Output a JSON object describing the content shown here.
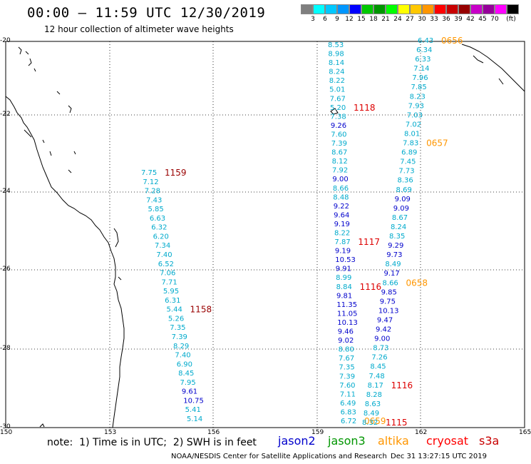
{
  "header": {
    "title": "00:00 – 11:59 UTC 12/30/2019",
    "subtitle": "12 hour collection of altimeter wave heights"
  },
  "scale": {
    "colors": [
      "#7f7f7f",
      "#00ffff",
      "#00c8ff",
      "#0096ff",
      "#0000ff",
      "#00c800",
      "#009600",
      "#00ff00",
      "#ffff00",
      "#ffc800",
      "#ff9600",
      "#ff0000",
      "#c80000",
      "#960000",
      "#c800c8",
      "#96009a",
      "#ff00ff",
      "#000000"
    ],
    "labels": [
      "3",
      "6",
      "9",
      "12",
      "15",
      "18",
      "21",
      "24",
      "27",
      "30",
      "33",
      "36",
      "39",
      "42",
      "45",
      "70",
      "(ft)"
    ]
  },
  "axes": {
    "lat_labels": [
      "-20",
      "-22",
      "-24",
      "-26",
      "-28",
      "-30"
    ],
    "lon_labels": [
      "150",
      "153",
      "156",
      "159",
      "162",
      "165"
    ]
  },
  "footer": {
    "note": "note:  1) Time is in UTC;  2) SWH is in feet",
    "satellites": [
      {
        "name": "jason2",
        "color": "#0000cc"
      },
      {
        "name": "jason3",
        "color": "#009600"
      },
      {
        "name": "altika",
        "color": "#ff9600"
      },
      {
        "name": "cryosat",
        "color": "#ff0000"
      },
      {
        "name": "s3a",
        "color": "#c80000"
      }
    ],
    "credit": "NOAA/NESDIS Center for Satellite Applications and Research",
    "timestamp": "Dec 31 13:27:15 UTC 2019"
  },
  "tracks": [
    {
      "id": "track-a",
      "color": "#00aacc",
      "values": [
        "7.75",
        "7.12",
        "7.28",
        "7.43",
        "5.85",
        "6.63",
        "6.32",
        "6.20",
        "7.34",
        "7.40",
        "6.52",
        "7.06",
        "7.71",
        "5.95",
        "6.31",
        "5.44",
        "5.26",
        "7.35",
        "7.39",
        "8.29",
        "7.40",
        "6.90",
        "8.45",
        "7.95",
        "9.61",
        "10.75",
        "5.41",
        "5.14"
      ],
      "time_labels": [
        {
          "text": "1159",
          "color": "#990000",
          "index": 0
        },
        {
          "text": "1158",
          "color": "#990000",
          "index": 15
        }
      ]
    },
    {
      "id": "track-b",
      "color": "#00aacc",
      "values": [
        "8.53",
        "8.98",
        "8.14",
        "8.24",
        "8.22",
        "5.01",
        "7.67",
        "5.20",
        "7.38",
        "9.26",
        "7.60",
        "7.39",
        "8.67",
        "8.12",
        "7.92",
        "9.00",
        "8.66",
        "8.48",
        "9.22",
        "9.64",
        "9.19",
        "8.22",
        "7.87",
        "9.19",
        "10.53",
        "9.91",
        "8.99",
        "8.84",
        "9.81",
        "11.35",
        "11.05",
        "10.13",
        "9.46",
        "9.02",
        "8.80",
        "7.67",
        "7.35",
        "7.39",
        "7.60",
        "7.11",
        "6.49",
        "6.83",
        "6.72"
      ],
      "time_labels": [
        {
          "text": "1118",
          "color": "#dd0000",
          "index": 7
        },
        {
          "text": "1117",
          "color": "#dd0000",
          "index": 22
        },
        {
          "text": "1116",
          "color": "#dd0000",
          "index": 27
        },
        {
          "text": "0659",
          "color": "#ff9600",
          "index": 42
        }
      ]
    },
    {
      "id": "track-c",
      "color": "#00aacc",
      "values": [
        "6.43",
        "6.34",
        "6.33",
        "7.14",
        "7.96",
        "7.85",
        "8.23",
        "7.93",
        "7.03",
        "7.02",
        "8.01",
        "7.83",
        "6.89",
        "7.45",
        "7.73",
        "8.36",
        "8.69",
        "9.09",
        "9.09",
        "8.67",
        "8.24",
        "8.35",
        "9.29",
        "9.73",
        "8.49",
        "9.17",
        "8.66",
        "9.85",
        "9.75",
        "10.13",
        "9.47",
        "9.42",
        "9.00",
        "8.73",
        "7.26",
        "8.45",
        "7.48",
        "8.17",
        "8.28",
        "8.63",
        "8.49",
        "8.32"
      ],
      "time_labels": [
        {
          "text": "0656",
          "color": "#ff9600",
          "index": 0
        },
        {
          "text": "0657",
          "color": "#ff9600",
          "index": 11
        },
        {
          "text": "0658",
          "color": "#ff9600",
          "index": 26
        },
        {
          "text": "1116",
          "color": "#dd0000",
          "index": 37
        },
        {
          "text": "1115",
          "color": "#dd0000",
          "index": 41
        }
      ]
    }
  ]
}
